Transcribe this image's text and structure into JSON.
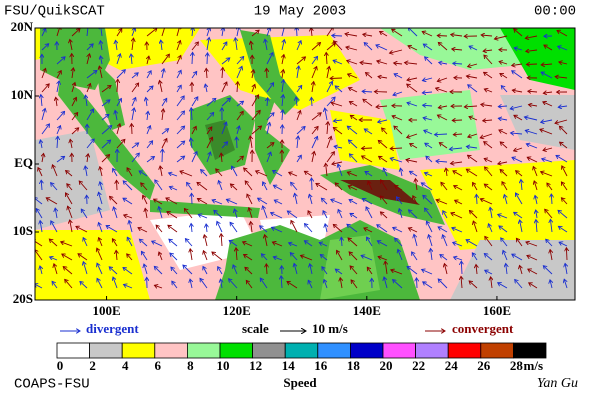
{
  "header": {
    "source": "FSU/QuikSCAT",
    "date": "19 May 2003",
    "time": "00:00"
  },
  "map": {
    "xlim": [
      89,
      172
    ],
    "ylim": [
      -20,
      20
    ],
    "xticks": [
      {
        "value": 100,
        "label": "100E"
      },
      {
        "value": 120,
        "label": "120E"
      },
      {
        "value": 140,
        "label": "140E"
      },
      {
        "value": 160,
        "label": "160E"
      }
    ],
    "yticks": [
      {
        "value": 20,
        "label": "20N"
      },
      {
        "value": 10,
        "label": "10N"
      },
      {
        "value": 0,
        "label": "EQ"
      },
      {
        "value": -10,
        "label": "10S"
      },
      {
        "value": -20,
        "label": "20S"
      }
    ]
  },
  "legend": {
    "divergent": {
      "label": "divergent",
      "color": "#1a2fd0"
    },
    "scale": {
      "label": "scale",
      "value": "10 m/s"
    },
    "convergent": {
      "label": "convergent",
      "color": "#8b0000"
    }
  },
  "colorbar": {
    "ticks": [
      0,
      2,
      4,
      6,
      8,
      10,
      12,
      14,
      16,
      18,
      20,
      22,
      24,
      26,
      28
    ],
    "colors": [
      "#ffffff",
      "#c8c8c8",
      "#ffff00",
      "#ffc4c4",
      "#98f898",
      "#00e000",
      "#909090",
      "#00b0b0",
      "#3090ff",
      "#0000c8",
      "#ff50ff",
      "#b080ff",
      "#ff0000",
      "#c04000",
      "#000000"
    ],
    "unit": "m/s",
    "label": "Speed"
  },
  "footer": {
    "org": "COAPS-FSU",
    "author": "Yan Gu"
  }
}
